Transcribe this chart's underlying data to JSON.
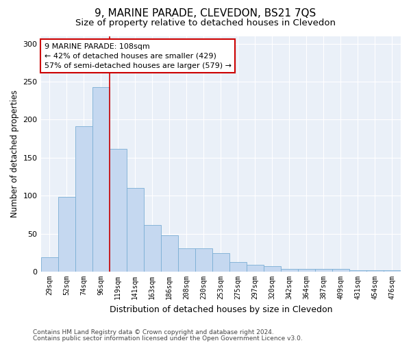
{
  "title": "9, MARINE PARADE, CLEVEDON, BS21 7QS",
  "subtitle": "Size of property relative to detached houses in Clevedon",
  "xlabel": "Distribution of detached houses by size in Clevedon",
  "ylabel": "Number of detached properties",
  "bar_labels": [
    "29sqm",
    "52sqm",
    "74sqm",
    "96sqm",
    "119sqm",
    "141sqm",
    "163sqm",
    "186sqm",
    "208sqm",
    "230sqm",
    "253sqm",
    "275sqm",
    "297sqm",
    "320sqm",
    "342sqm",
    "364sqm",
    "387sqm",
    "409sqm",
    "431sqm",
    "454sqm",
    "476sqm"
  ],
  "bar_values": [
    19,
    98,
    191,
    243,
    162,
    110,
    61,
    48,
    31,
    31,
    24,
    13,
    9,
    7,
    4,
    4,
    4,
    4,
    2,
    2,
    2
  ],
  "bar_color": "#c5d8f0",
  "bar_edge_color": "#7aaed4",
  "vline_x": 3.5,
  "annotation_title": "9 MARINE PARADE: 108sqm",
  "annotation_line1": "← 42% of detached houses are smaller (429)",
  "annotation_line2": "57% of semi-detached houses are larger (579) →",
  "annotation_box_facecolor": "#ffffff",
  "annotation_box_edgecolor": "#cc0000",
  "vline_color": "#cc0000",
  "ylim": [
    0,
    310
  ],
  "yticks": [
    0,
    50,
    100,
    150,
    200,
    250,
    300
  ],
  "footnote1": "Contains HM Land Registry data © Crown copyright and database right 2024.",
  "footnote2": "Contains public sector information licensed under the Open Government Licence v3.0.",
  "bg_color": "#ffffff",
  "plot_bg_color": "#eaf0f8",
  "title_fontsize": 11,
  "subtitle_fontsize": 9.5,
  "tick_fontsize": 7,
  "ylabel_fontsize": 8.5,
  "xlabel_fontsize": 9,
  "annotation_fontsize": 8,
  "footnote_fontsize": 6.5
}
